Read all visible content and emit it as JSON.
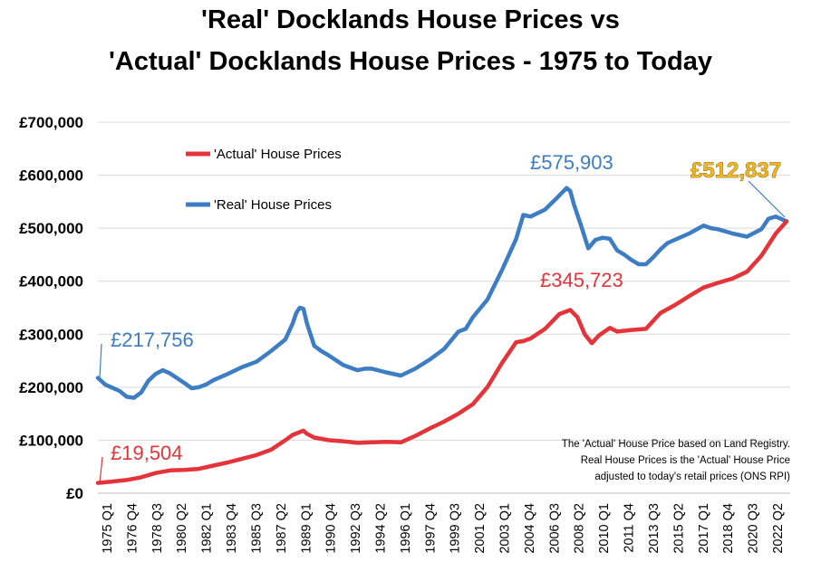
{
  "title": {
    "line1": "'Real' Docklands House Prices vs",
    "line2": "'Actual' Docklands House Prices - 1975 to Today"
  },
  "chart_data": {
    "type": "line",
    "title": "'Real' Docklands House Prices vs 'Actual' Docklands House Prices - 1975 to Today",
    "xlabel": "",
    "ylabel": "",
    "ylim": [
      0,
      700000
    ],
    "ytick_labels": [
      "£0",
      "£100,000",
      "£200,000",
      "£300,000",
      "£400,000",
      "£500,000",
      "£600,000",
      "£700,000"
    ],
    "ytick_values": [
      0,
      100000,
      200000,
      300000,
      400000,
      500000,
      600000,
      700000
    ],
    "grid": true,
    "legend_position": "top-left",
    "xtick_labels": [
      "1975 Q1",
      "1976 Q4",
      "1978 Q3",
      "1980 Q2",
      "1982 Q1",
      "1983 Q4",
      "1985 Q3",
      "1987 Q2",
      "1989 Q1",
      "1990 Q4",
      "1992 Q3",
      "1994 Q2",
      "1996 Q1",
      "1997 Q4",
      "1999 Q3",
      "2001 Q2",
      "2003 Q1",
      "2004 Q4",
      "2006 Q3",
      "2008 Q2",
      "2010 Q1",
      "2011 Q4",
      "2013 Q3",
      "2015 Q2",
      "2017 Q1",
      "2018 Q4",
      "2020 Q3",
      "2022 Q2"
    ],
    "x_range": [
      1975.0,
      2023.0
    ],
    "series": [
      {
        "name": "'Actual' House Prices",
        "color": "#e5333a",
        "x": [
          1975.0,
          1976.0,
          1977.0,
          1978.0,
          1979.0,
          1980.0,
          1981.0,
          1982.0,
          1983.0,
          1984.0,
          1985.0,
          1986.0,
          1987.0,
          1988.0,
          1988.5,
          1989.25,
          1989.5,
          1990.0,
          1991.0,
          1992.0,
          1993.0,
          1994.0,
          1995.0,
          1996.0,
          1997.0,
          1998.0,
          1999.0,
          2000.0,
          2001.0,
          2002.0,
          2003.0,
          2004.0,
          2004.5,
          2005.0,
          2006.0,
          2007.0,
          2007.75,
          2008.25,
          2008.75,
          2009.25,
          2009.75,
          2010.5,
          2011.0,
          2012.0,
          2013.0,
          2014.0,
          2015.0,
          2016.0,
          2017.0,
          2018.0,
          2019.0,
          2020.0,
          2021.0,
          2022.0,
          2022.75
        ],
        "values": [
          19504,
          22000,
          25000,
          30000,
          38000,
          43000,
          44000,
          46000,
          52000,
          58000,
          65000,
          72000,
          82000,
          100000,
          110000,
          118000,
          112000,
          105000,
          100000,
          98000,
          95000,
          96000,
          97000,
          96000,
          108000,
          122000,
          135000,
          150000,
          168000,
          200000,
          245000,
          285000,
          287000,
          292000,
          310000,
          338000,
          345723,
          332000,
          300000,
          283000,
          298000,
          312000,
          305000,
          308000,
          310000,
          340000,
          355000,
          372000,
          388000,
          397000,
          405000,
          418000,
          448000,
          490000,
          512837
        ]
      },
      {
        "name": "'Real' House Prices",
        "color": "#3c7dc4",
        "x": [
          1975.0,
          1975.5,
          1976.5,
          1977.0,
          1977.5,
          1978.0,
          1978.5,
          1979.0,
          1979.5,
          1980.0,
          1981.0,
          1981.5,
          1982.0,
          1982.5,
          1983.0,
          1984.0,
          1985.0,
          1986.0,
          1987.0,
          1988.0,
          1988.5,
          1988.75,
          1989.0,
          1989.25,
          1989.5,
          1990.0,
          1990.5,
          1991.0,
          1992.0,
          1993.0,
          1993.5,
          1994.0,
          1995.0,
          1996.0,
          1997.0,
          1998.0,
          1999.0,
          2000.0,
          2000.5,
          2001.0,
          2002.0,
          2003.0,
          2004.0,
          2004.5,
          2005.0,
          2006.0,
          2006.75,
          2007.5,
          2007.75,
          2008.0,
          2008.5,
          2009.0,
          2009.5,
          2010.0,
          2010.5,
          2011.0,
          2011.5,
          2012.0,
          2012.5,
          2013.0,
          2013.5,
          2014.0,
          2014.5,
          2015.0,
          2016.0,
          2017.0,
          2017.5,
          2018.0,
          2019.0,
          2020.0,
          2021.0,
          2021.5,
          2022.0,
          2022.75
        ],
        "values": [
          217756,
          205000,
          193000,
          182000,
          180000,
          190000,
          212000,
          225000,
          232000,
          226000,
          208000,
          198000,
          200000,
          205000,
          213000,
          225000,
          238000,
          248000,
          268000,
          290000,
          320000,
          340000,
          350000,
          348000,
          320000,
          278000,
          268000,
          260000,
          242000,
          232000,
          235000,
          235000,
          228000,
          222000,
          235000,
          252000,
          272000,
          305000,
          310000,
          332000,
          365000,
          420000,
          480000,
          525000,
          522000,
          535000,
          555000,
          575903,
          570000,
          545000,
          505000,
          462000,
          478000,
          482000,
          480000,
          458000,
          450000,
          440000,
          432000,
          432000,
          445000,
          460000,
          472000,
          478000,
          490000,
          505000,
          500000,
          498000,
          490000,
          484000,
          498000,
          518000,
          522000,
          512837
        ]
      }
    ],
    "annotations": [
      {
        "text": "£217,756",
        "color": "#3c7dc4"
      },
      {
        "text": "£19,504",
        "color": "#e5333a"
      },
      {
        "text": "£575,903",
        "color": "#3c7dc4"
      },
      {
        "text": "£345,723",
        "color": "#e5333a"
      },
      {
        "text": "£512,837",
        "color": "#f2b51e"
      }
    ],
    "note": [
      "The 'Actual' House Price based on Land Registry.",
      "Real House Prices is the 'Actual' House Price",
      "adjusted  to today's retail prices (ONS RPI)"
    ]
  }
}
